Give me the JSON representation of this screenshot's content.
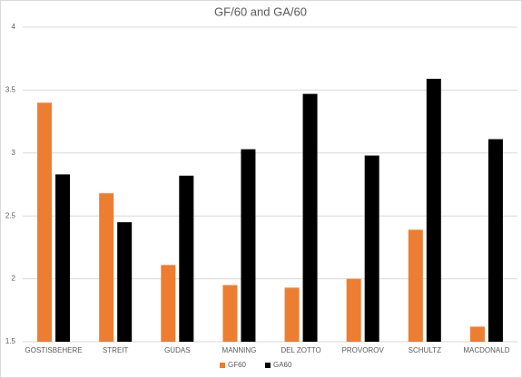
{
  "chart_data": {
    "type": "bar",
    "title": "GF/60 and GA/60",
    "categories": [
      "GOSTISBEHERE",
      "STREIT",
      "GUDAS",
      "MANNING",
      "DEL ZOTTO",
      "PROVOROV",
      "SCHULTZ",
      "MACDONALD"
    ],
    "series": [
      {
        "name": "GF60",
        "color": "#ed7d31",
        "values": [
          3.4,
          2.68,
          2.11,
          1.95,
          1.93,
          2.0,
          2.39,
          1.62
        ]
      },
      {
        "name": "GA60",
        "color": "#000000",
        "values": [
          2.83,
          2.45,
          2.82,
          3.03,
          3.47,
          2.98,
          3.59,
          3.11
        ]
      }
    ],
    "ylim": [
      1.5,
      4
    ],
    "yticks": [
      1.5,
      2,
      2.5,
      3,
      3.5,
      4
    ],
    "grid": true,
    "legend": "bottom"
  }
}
